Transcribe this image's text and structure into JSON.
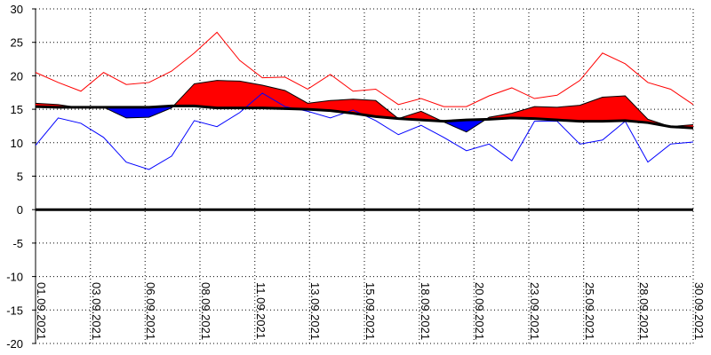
{
  "chart_data": {
    "type": "temperature-band",
    "x": [
      1,
      2,
      3,
      4,
      5,
      6,
      7,
      8,
      9,
      10,
      11,
      12,
      13,
      14,
      15,
      16,
      17,
      18,
      19,
      20,
      21,
      22,
      23,
      24,
      25,
      26,
      27,
      28,
      29,
      30
    ],
    "xlim": [
      1,
      30
    ],
    "xticks": [
      {
        "value": 1,
        "label": "01.09.2021"
      },
      {
        "value": 3.42,
        "label": "03.09.2021"
      },
      {
        "value": 5.83,
        "label": "06.09.2021"
      },
      {
        "value": 8.25,
        "label": "08.09.2021"
      },
      {
        "value": 10.67,
        "label": "11.09.2021"
      },
      {
        "value": 13.08,
        "label": "13.09.2021"
      },
      {
        "value": 15.5,
        "label": "15.09.2021"
      },
      {
        "value": 17.92,
        "label": "18.09.2021"
      },
      {
        "value": 20.33,
        "label": "20.09.2021"
      },
      {
        "value": 22.75,
        "label": "23.09.2021"
      },
      {
        "value": 25.17,
        "label": "25.09.2021"
      },
      {
        "value": 27.58,
        "label": "28.09.2021"
      },
      {
        "value": 30,
        "label": "30.09.2021"
      }
    ],
    "ylim": [
      -20,
      30
    ],
    "yticks": [
      -20,
      -15,
      -10,
      -5,
      0,
      5,
      10,
      15,
      20,
      25,
      30
    ],
    "grid": true,
    "series": [
      {
        "color": "#ff0000",
        "values": [
          20.5,
          19,
          17.7,
          20.5,
          18.7,
          19,
          20.7,
          23.4,
          26.5,
          22.3,
          19.7,
          19.8,
          18,
          20.2,
          17.7,
          18,
          15.7,
          16.6,
          15.4,
          15.4,
          17,
          18.2,
          16.6,
          17.1,
          19.3,
          23.4,
          21.8,
          19,
          18,
          15.7
        ]
      },
      {
        "color": "#0000ff",
        "values": [
          9.6,
          13.7,
          12.9,
          10.8,
          7.1,
          6,
          8,
          13.3,
          12.4,
          14.5,
          17.4,
          15.4,
          14.7,
          13.7,
          14.9,
          13.3,
          11.2,
          12.6,
          10.8,
          8.8,
          9.8,
          7.3,
          13.2,
          13.2,
          9.8,
          10.4,
          13.2,
          7.1,
          9.8,
          10.1
        ]
      },
      {
        "color": "#000000",
        "color_above": "#ff0000",
        "color_below": "#0000ff",
        "values": [
          15.9,
          15.7,
          15.2,
          15.3,
          13.7,
          13.8,
          15.2,
          18.8,
          19.3,
          19.2,
          18.6,
          17.8,
          15.9,
          16.3,
          16.5,
          16.3,
          13.6,
          14.7,
          13.1,
          11.6,
          13.8,
          14.4,
          15.4,
          15.3,
          15.6,
          16.8,
          17,
          13.5,
          12.4,
          12.7
        ]
      },
      {
        "color": "#000000",
        "values": [
          15.4,
          15.3,
          15.3,
          15.3,
          15.3,
          15.3,
          15.5,
          15.5,
          15.2,
          15.2,
          15.2,
          15.1,
          15,
          14.8,
          14.4,
          13.9,
          13.6,
          13.4,
          13.2,
          13.4,
          13.5,
          13.7,
          13.6,
          13.4,
          13.2,
          13.2,
          13.3,
          13,
          12.4,
          12.2
        ]
      }
    ]
  }
}
